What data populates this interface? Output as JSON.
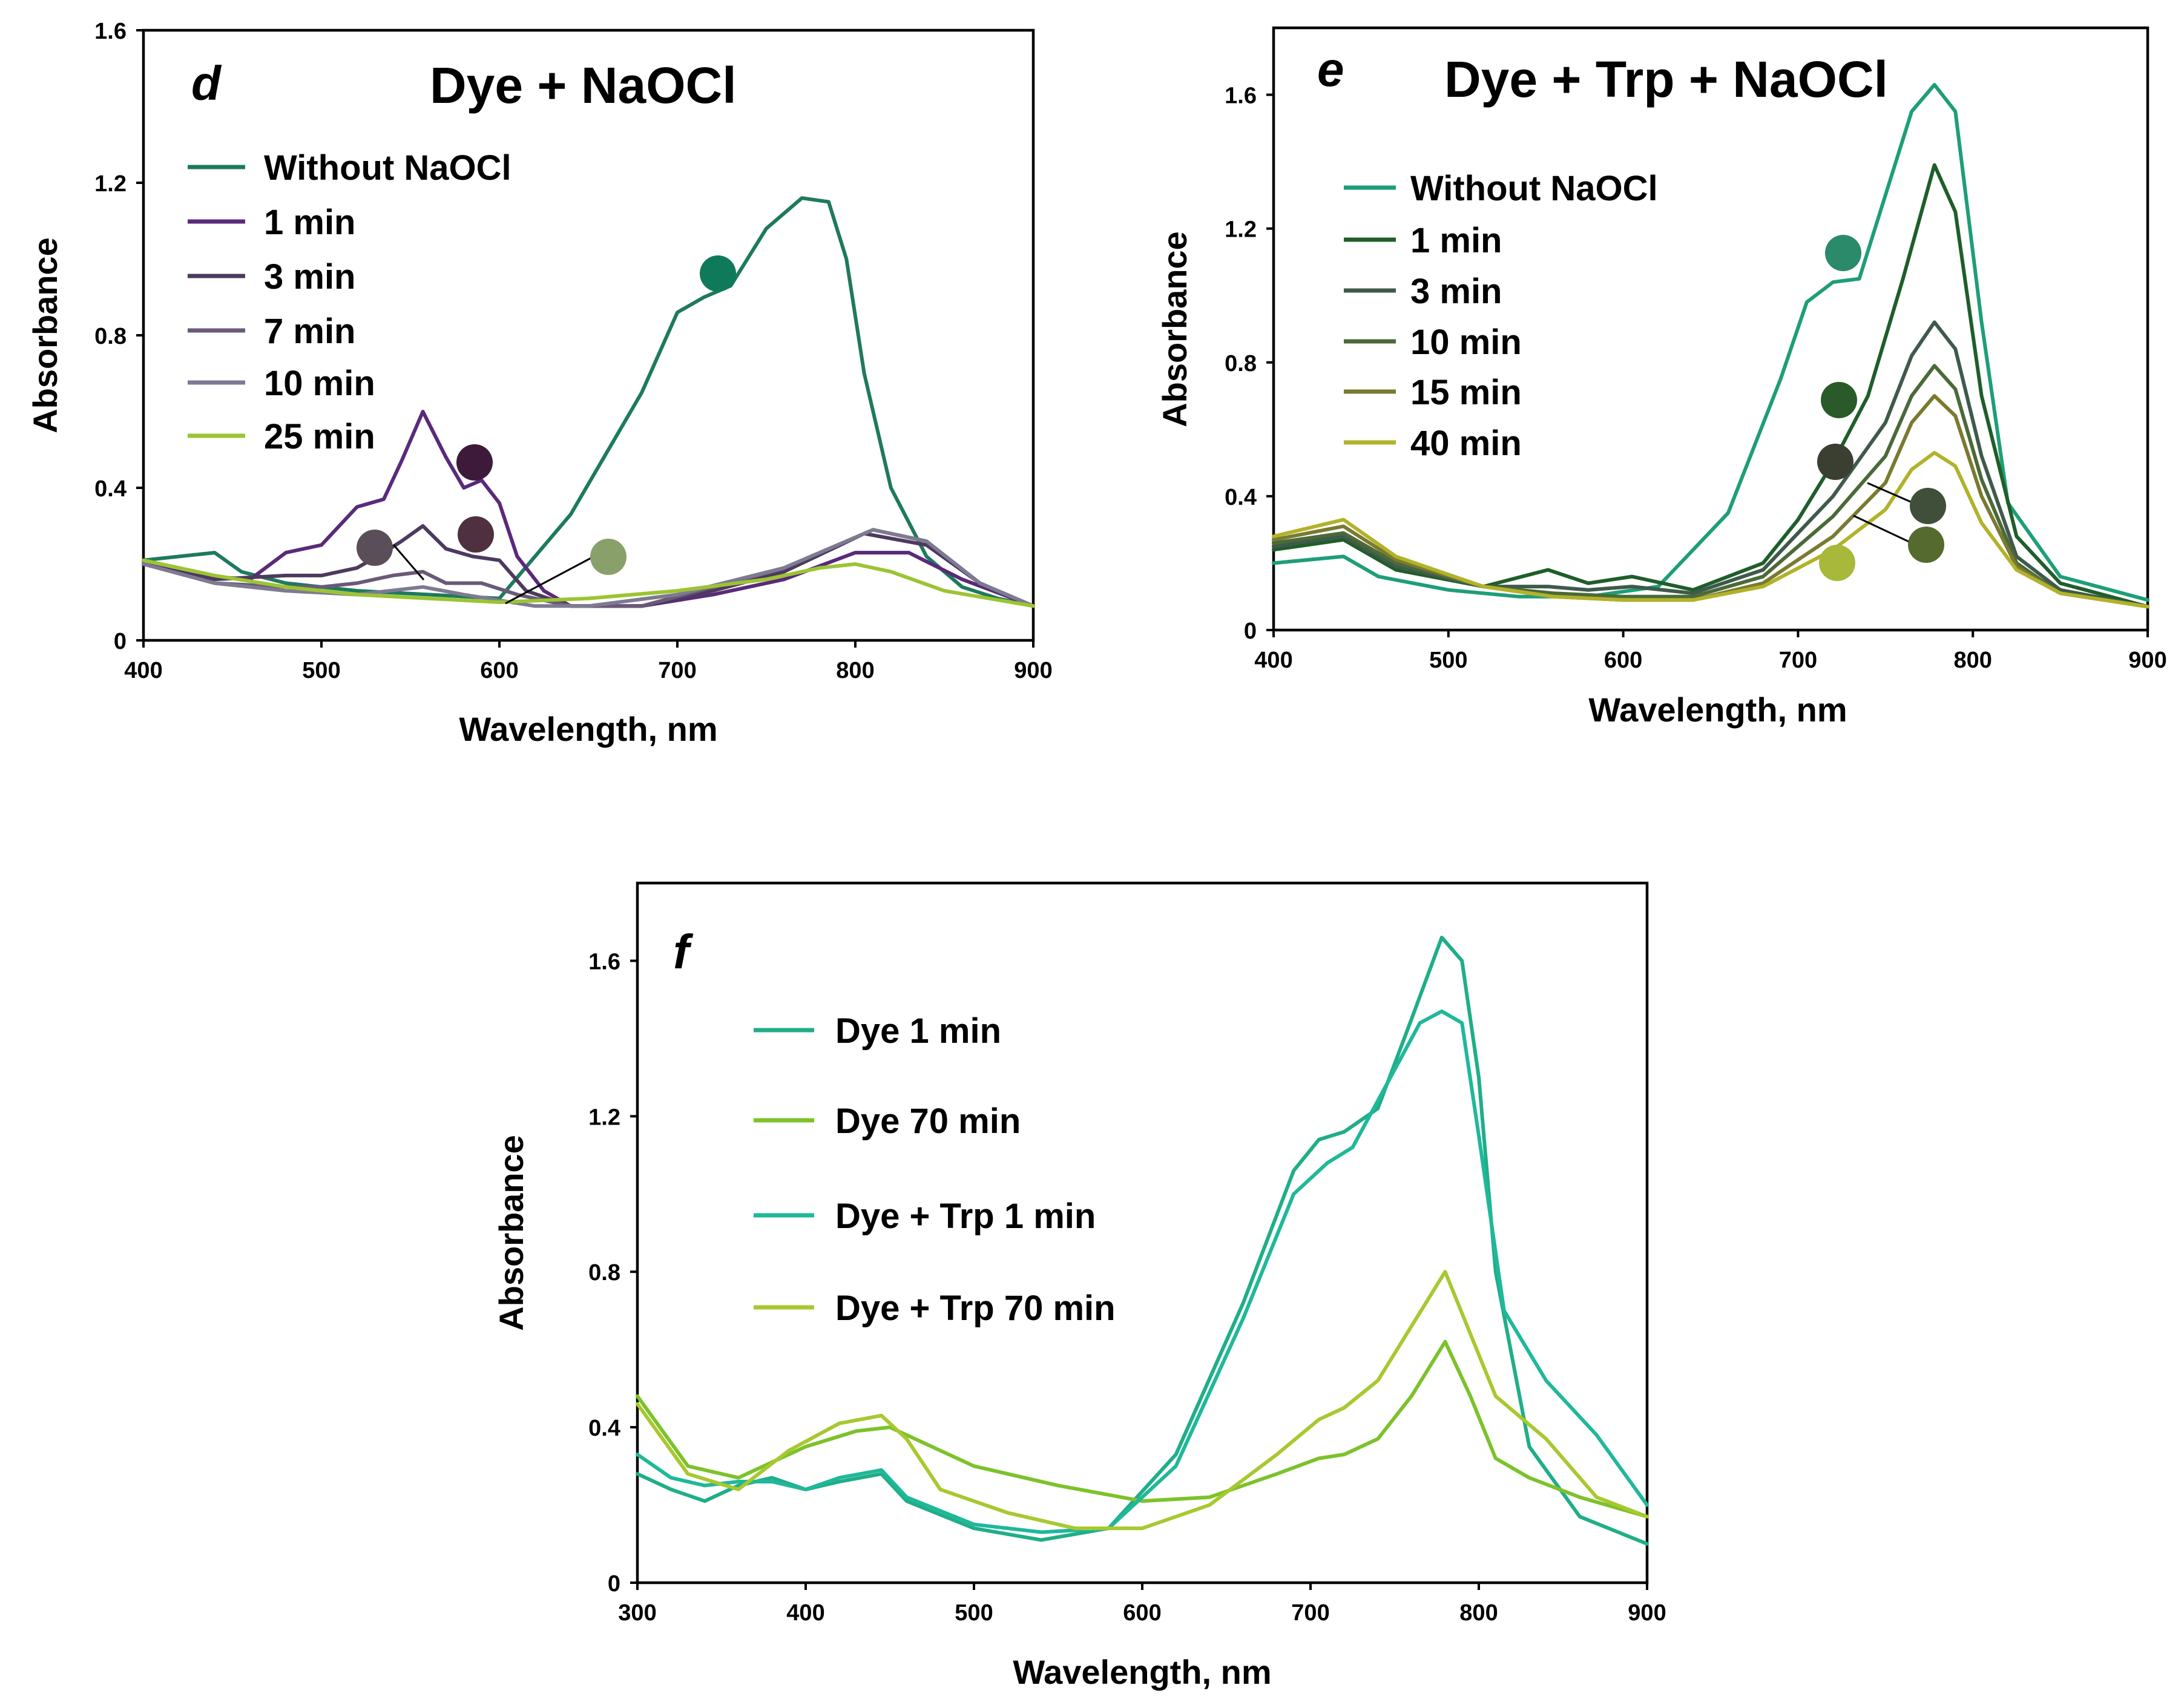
{
  "chart_data": [
    {
      "panel": "d",
      "type": "line",
      "title": "Dye + NaOCl",
      "xlabel": "Wavelength, nm",
      "ylabel": "Absorbance",
      "xlim": [
        400,
        900
      ],
      "ylim": [
        0,
        1.6
      ],
      "xticks": [
        "400",
        "500",
        "600",
        "700",
        "800",
        "900"
      ],
      "yticks": [
        "0",
        "0.4",
        "0.8",
        "1.2",
        "1.6"
      ],
      "series": [
        {
          "name": "Without NaOCl",
          "color": "#1e7a5c",
          "x": [
            400,
            420,
            440,
            455,
            480,
            520,
            560,
            600,
            640,
            680,
            700,
            715,
            730,
            750,
            770,
            785,
            795,
            805,
            820,
            840,
            860,
            880,
            900
          ],
          "y": [
            0.21,
            0.22,
            0.23,
            0.18,
            0.15,
            0.13,
            0.12,
            0.11,
            0.33,
            0.65,
            0.86,
            0.9,
            0.93,
            1.08,
            1.16,
            1.15,
            1.0,
            0.7,
            0.4,
            0.22,
            0.14,
            0.11,
            0.09
          ]
        },
        {
          "name": "1 min",
          "color": "#5a2a7a",
          "x": [
            400,
            430,
            460,
            480,
            500,
            520,
            535,
            545,
            557,
            570,
            580,
            590,
            600,
            610,
            625,
            640,
            680,
            720,
            760,
            800,
            830,
            860,
            900
          ],
          "y": [
            0.2,
            0.17,
            0.16,
            0.23,
            0.25,
            0.35,
            0.37,
            0.47,
            0.6,
            0.48,
            0.4,
            0.42,
            0.36,
            0.22,
            0.13,
            0.09,
            0.09,
            0.12,
            0.16,
            0.23,
            0.23,
            0.16,
            0.09
          ]
        },
        {
          "name": "3 min",
          "color": "#4d3a5e",
          "x": [
            400,
            440,
            480,
            500,
            520,
            535,
            545,
            557,
            570,
            585,
            600,
            615,
            640,
            680,
            720,
            760,
            805,
            840,
            870,
            900
          ],
          "y": [
            0.2,
            0.16,
            0.17,
            0.17,
            0.19,
            0.23,
            0.26,
            0.3,
            0.24,
            0.22,
            0.21,
            0.13,
            0.09,
            0.09,
            0.13,
            0.18,
            0.28,
            0.25,
            0.15,
            0.09
          ]
        },
        {
          "name": "7 min",
          "color": "#6a5a78",
          "x": [
            400,
            440,
            480,
            500,
            520,
            540,
            557,
            570,
            590,
            610,
            640,
            680,
            720,
            760,
            810,
            840,
            870,
            900
          ],
          "y": [
            0.2,
            0.15,
            0.14,
            0.14,
            0.15,
            0.17,
            0.18,
            0.15,
            0.15,
            0.12,
            0.09,
            0.09,
            0.14,
            0.19,
            0.29,
            0.26,
            0.15,
            0.09
          ]
        },
        {
          "name": "10 min",
          "color": "#7e7a92",
          "x": [
            400,
            440,
            480,
            520,
            557,
            580,
            620,
            650,
            700,
            760,
            810,
            840,
            870,
            900
          ],
          "y": [
            0.2,
            0.15,
            0.13,
            0.12,
            0.14,
            0.12,
            0.09,
            0.09,
            0.12,
            0.19,
            0.29,
            0.26,
            0.15,
            0.09
          ]
        },
        {
          "name": "25 min",
          "color": "#9cc432",
          "x": [
            400,
            440,
            480,
            520,
            560,
            600,
            650,
            700,
            750,
            780,
            800,
            820,
            850,
            900
          ],
          "y": [
            0.21,
            0.17,
            0.14,
            0.12,
            0.11,
            0.1,
            0.11,
            0.13,
            0.16,
            0.19,
            0.2,
            0.18,
            0.13,
            0.09
          ]
        }
      ]
    },
    {
      "panel": "e",
      "type": "line",
      "title": "Dye + Trp + NaOCl",
      "xlabel": "Wavelength, nm",
      "ylabel": "Absorbance",
      "xlim": [
        400,
        900
      ],
      "ylim": [
        0,
        1.8
      ],
      "xticks": [
        "400",
        "500",
        "600",
        "700",
        "800",
        "900"
      ],
      "yticks": [
        "0",
        "0.4",
        "0.8",
        "1.2",
        "1.6"
      ],
      "series": [
        {
          "name": "Without NaOCl",
          "color": "#1e9e78",
          "x": [
            400,
            420,
            440,
            460,
            500,
            540,
            580,
            620,
            660,
            690,
            705,
            720,
            735,
            750,
            765,
            778,
            790,
            805,
            820,
            850,
            900
          ],
          "y": [
            0.2,
            0.21,
            0.22,
            0.16,
            0.12,
            0.1,
            0.1,
            0.13,
            0.35,
            0.75,
            0.98,
            1.04,
            1.05,
            1.3,
            1.55,
            1.63,
            1.55,
            0.92,
            0.38,
            0.16,
            0.09
          ]
        },
        {
          "name": "1 min",
          "color": "#1f5e2a",
          "x": [
            400,
            440,
            470,
            520,
            557,
            580,
            605,
            640,
            680,
            700,
            720,
            740,
            760,
            778,
            790,
            805,
            825,
            850,
            900
          ],
          "y": [
            0.24,
            0.27,
            0.18,
            0.13,
            0.18,
            0.14,
            0.16,
            0.12,
            0.2,
            0.33,
            0.5,
            0.7,
            1.05,
            1.39,
            1.25,
            0.7,
            0.28,
            0.14,
            0.07
          ]
        },
        {
          "name": "3 min",
          "color": "#3f5a4a",
          "x": [
            400,
            440,
            470,
            520,
            557,
            580,
            605,
            640,
            680,
            720,
            750,
            765,
            778,
            790,
            805,
            825,
            850,
            900
          ],
          "y": [
            0.25,
            0.28,
            0.19,
            0.13,
            0.13,
            0.12,
            0.13,
            0.11,
            0.18,
            0.4,
            0.62,
            0.82,
            0.92,
            0.84,
            0.52,
            0.22,
            0.12,
            0.07
          ]
        },
        {
          "name": "10 min",
          "color": "#4a6a38",
          "x": [
            400,
            440,
            470,
            520,
            560,
            600,
            640,
            680,
            720,
            750,
            765,
            778,
            790,
            805,
            825,
            850,
            900
          ],
          "y": [
            0.26,
            0.29,
            0.2,
            0.13,
            0.11,
            0.1,
            0.1,
            0.16,
            0.34,
            0.52,
            0.7,
            0.79,
            0.72,
            0.45,
            0.2,
            0.11,
            0.07
          ]
        },
        {
          "name": "15 min",
          "color": "#7a7a30",
          "x": [
            400,
            440,
            470,
            520,
            560,
            600,
            640,
            680,
            720,
            750,
            765,
            778,
            790,
            805,
            825,
            850,
            900
          ],
          "y": [
            0.27,
            0.31,
            0.21,
            0.13,
            0.1,
            0.09,
            0.09,
            0.14,
            0.28,
            0.44,
            0.62,
            0.7,
            0.64,
            0.4,
            0.19,
            0.11,
            0.07
          ]
        },
        {
          "name": "40 min",
          "color": "#b2b22a",
          "x": [
            400,
            440,
            470,
            520,
            560,
            600,
            640,
            680,
            720,
            750,
            765,
            778,
            790,
            805,
            825,
            850,
            900
          ],
          "y": [
            0.28,
            0.33,
            0.22,
            0.13,
            0.1,
            0.09,
            0.09,
            0.13,
            0.24,
            0.36,
            0.48,
            0.53,
            0.49,
            0.32,
            0.18,
            0.11,
            0.07
          ]
        }
      ]
    },
    {
      "panel": "f",
      "type": "line",
      "title": "",
      "xlabel": "Wavelength, nm",
      "ylabel": "Absorbance",
      "xlim": [
        300,
        900
      ],
      "ylim": [
        0,
        1.8
      ],
      "xticks": [
        "300",
        "400",
        "500",
        "600",
        "700",
        "800",
        "900"
      ],
      "yticks": [
        "0",
        "0.4",
        "0.8",
        "1.2",
        "1.6"
      ],
      "series": [
        {
          "name": "Dye 1 min",
          "color": "#1fae88",
          "x": [
            300,
            320,
            340,
            360,
            380,
            400,
            420,
            445,
            460,
            500,
            540,
            580,
            620,
            660,
            690,
            705,
            720,
            740,
            760,
            778,
            790,
            800,
            810,
            830,
            860,
            900
          ],
          "y": [
            0.28,
            0.24,
            0.21,
            0.25,
            0.27,
            0.24,
            0.26,
            0.28,
            0.21,
            0.14,
            0.11,
            0.14,
            0.33,
            0.72,
            1.06,
            1.14,
            1.16,
            1.22,
            1.45,
            1.66,
            1.6,
            1.3,
            0.8,
            0.35,
            0.17,
            0.1
          ]
        },
        {
          "name": "Dye 70 min",
          "color": "#7cc22a",
          "x": [
            300,
            330,
            360,
            400,
            430,
            450,
            470,
            500,
            550,
            600,
            640,
            680,
            705,
            720,
            740,
            760,
            780,
            795,
            810,
            830,
            860,
            900
          ],
          "y": [
            0.48,
            0.3,
            0.27,
            0.35,
            0.39,
            0.4,
            0.36,
            0.3,
            0.25,
            0.21,
            0.22,
            0.28,
            0.32,
            0.33,
            0.37,
            0.48,
            0.62,
            0.48,
            0.32,
            0.27,
            0.22,
            0.17
          ]
        },
        {
          "name": "Dye + Trp 1 min",
          "color": "#1fb89a",
          "x": [
            300,
            320,
            340,
            360,
            380,
            400,
            420,
            445,
            460,
            500,
            540,
            580,
            620,
            660,
            690,
            710,
            725,
            745,
            765,
            778,
            790,
            800,
            815,
            840,
            870,
            900
          ],
          "y": [
            0.33,
            0.27,
            0.25,
            0.26,
            0.26,
            0.24,
            0.27,
            0.29,
            0.22,
            0.15,
            0.13,
            0.14,
            0.3,
            0.68,
            1.0,
            1.08,
            1.12,
            1.28,
            1.44,
            1.47,
            1.44,
            1.15,
            0.7,
            0.52,
            0.38,
            0.2
          ]
        },
        {
          "name": "Dye + Trp 70 min",
          "color": "#a8c830",
          "x": [
            300,
            330,
            360,
            390,
            420,
            445,
            460,
            480,
            520,
            560,
            600,
            640,
            680,
            705,
            720,
            740,
            760,
            780,
            795,
            810,
            840,
            870,
            900
          ],
          "y": [
            0.46,
            0.28,
            0.24,
            0.34,
            0.41,
            0.43,
            0.37,
            0.24,
            0.18,
            0.14,
            0.14,
            0.2,
            0.33,
            0.42,
            0.45,
            0.52,
            0.66,
            0.8,
            0.64,
            0.48,
            0.37,
            0.22,
            0.17
          ]
        }
      ]
    }
  ]
}
